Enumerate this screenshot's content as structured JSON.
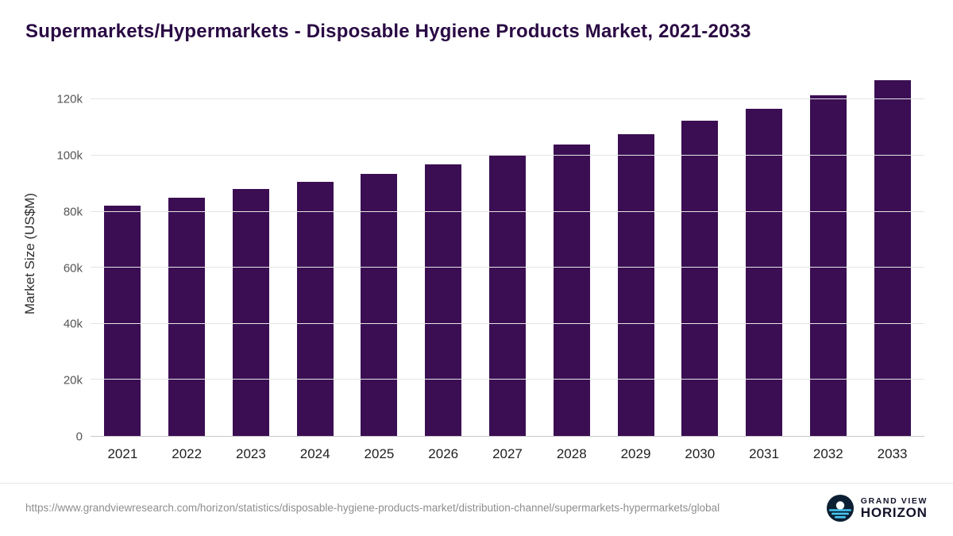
{
  "header": {
    "title": "Supermarkets/Hypermarkets - Disposable Hygiene Products Market, 2021-2033"
  },
  "chart_data": {
    "type": "bar",
    "title": "Supermarkets/Hypermarkets - Disposable Hygiene Products Market, 2021-2033",
    "categories": [
      "2021",
      "2022",
      "2023",
      "2024",
      "2025",
      "2026",
      "2027",
      "2028",
      "2029",
      "2030",
      "2031",
      "2032",
      "2033"
    ],
    "values": [
      82000,
      85000,
      88000,
      90500,
      93600,
      97000,
      100400,
      104000,
      107600,
      112400,
      116700,
      121500,
      127000
    ],
    "xlabel": "",
    "ylabel": "Market Size (US$M)",
    "ylim": [
      0,
      130000
    ],
    "y_ticks": [
      {
        "value": 0,
        "label": "0"
      },
      {
        "value": 20000,
        "label": "20k"
      },
      {
        "value": 40000,
        "label": "40k"
      },
      {
        "value": 60000,
        "label": "60k"
      },
      {
        "value": 80000,
        "label": "80k"
      },
      {
        "value": 100000,
        "label": "100k"
      },
      {
        "value": 120000,
        "label": "120k"
      }
    ],
    "bar_color": "#3b0e53",
    "grid": true,
    "legend": null
  },
  "footer": {
    "source_url": "https://www.grandviewresearch.com/horizon/statistics/disposable-hygiene-products-market/distribution-channel/supermarkets-hypermarkets/global",
    "logo": {
      "line1": "GRAND VIEW",
      "line2": "HORIZON"
    },
    "logo_colors": {
      "circle": "#0d2033",
      "sun": "#ffffff",
      "water": "#45c6f2"
    }
  }
}
